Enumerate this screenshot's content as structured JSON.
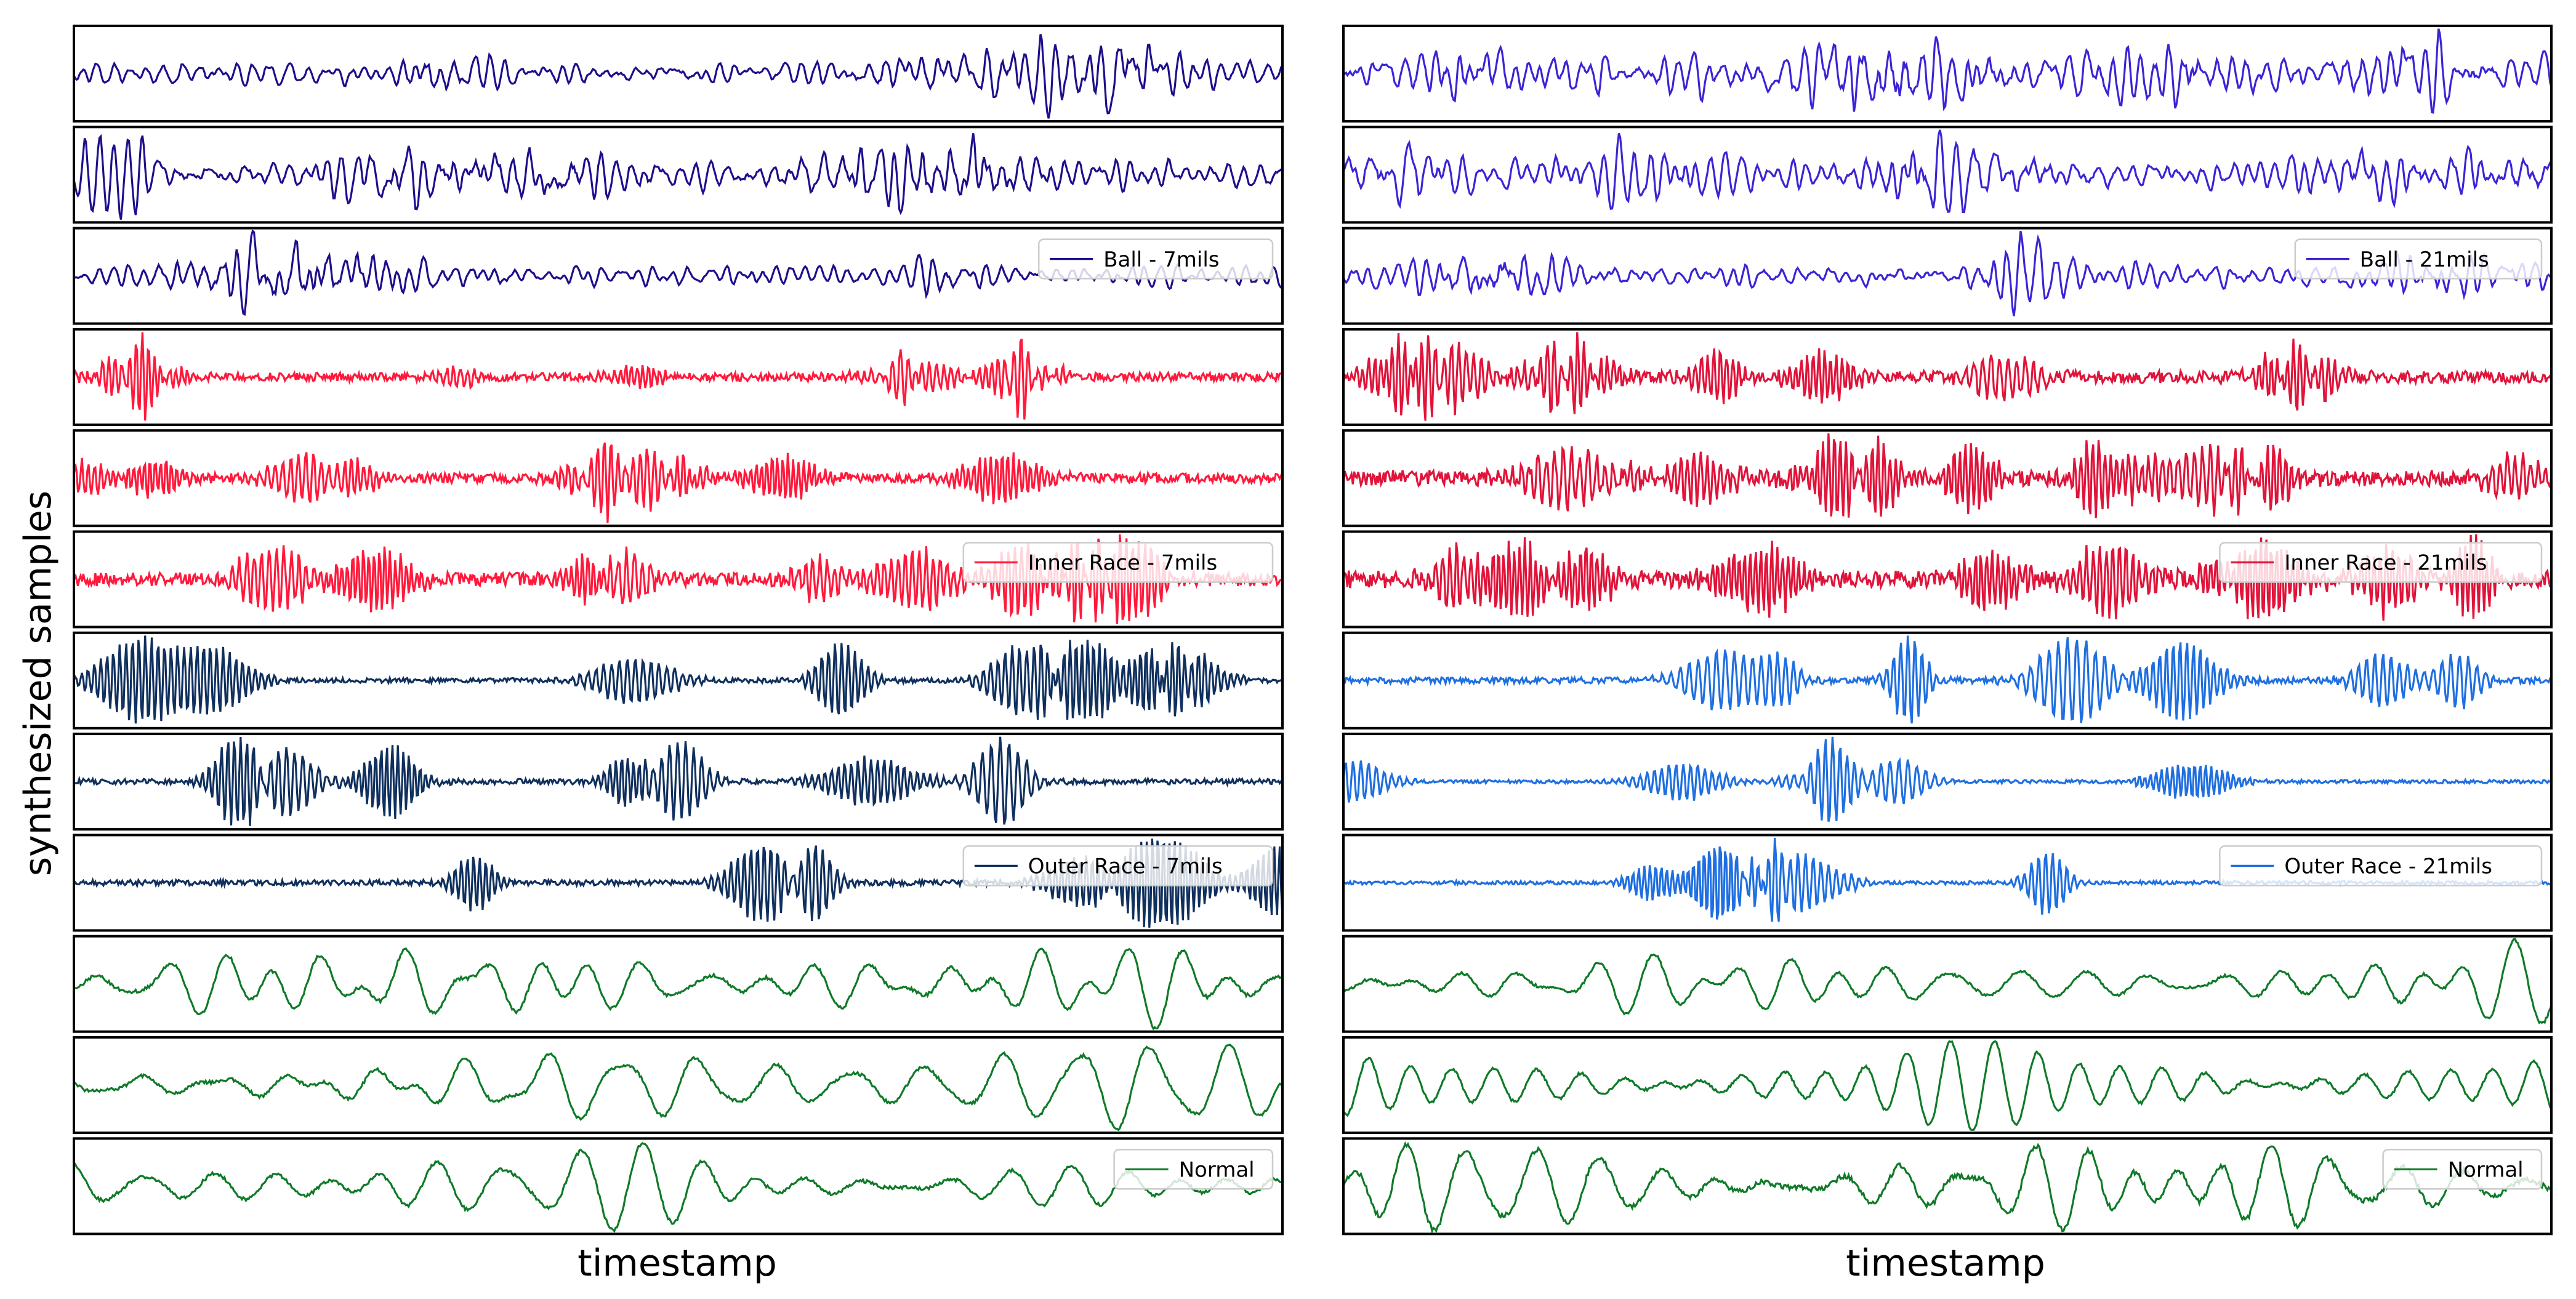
{
  "figure": {
    "ylabel": "synthesized samples",
    "xlabel_left": "timestamp",
    "xlabel_right": "timestamp"
  },
  "chart_data": [
    {
      "type": "line",
      "panel": "left",
      "xlabel": "timestamp",
      "ylabel": "synthesized samples",
      "x_ticks": "none",
      "y_ticks": "none",
      "rows": [
        {
          "group": "Ball - 7mils",
          "color": "#1d0f8c",
          "pattern": "broadband",
          "legend": ""
        },
        {
          "group": "Ball - 7mils",
          "color": "#1d0f8c",
          "pattern": "broadband",
          "legend": ""
        },
        {
          "group": "Ball - 7mils",
          "color": "#1d0f8c",
          "pattern": "broadband",
          "legend": "Ball - 7mils",
          "legend_position": "upper-right"
        },
        {
          "group": "Inner Race - 7mils",
          "color": "#ff1a3c",
          "pattern": "modulated",
          "legend": ""
        },
        {
          "group": "Inner Race - 7mils",
          "color": "#ff1a3c",
          "pattern": "modulated",
          "legend": ""
        },
        {
          "group": "Inner Race - 7mils",
          "color": "#ff1a3c",
          "pattern": "modulated",
          "legend": "Inner Race - 7mils",
          "legend_position": "upper-right"
        },
        {
          "group": "Outer Race - 7mils",
          "color": "#10305e",
          "pattern": "impulsive",
          "legend": ""
        },
        {
          "group": "Outer Race - 7mils",
          "color": "#10305e",
          "pattern": "impulsive",
          "legend": ""
        },
        {
          "group": "Outer Race - 7mils",
          "color": "#10305e",
          "pattern": "impulsive",
          "legend": "Outer Race - 7mils",
          "legend_position": "upper-right"
        },
        {
          "group": "Normal",
          "color": "#0f7a28",
          "pattern": "smooth",
          "legend": ""
        },
        {
          "group": "Normal",
          "color": "#0f7a28",
          "pattern": "smooth",
          "legend": ""
        },
        {
          "group": "Normal",
          "color": "#0f7a28",
          "pattern": "smooth",
          "legend": "Normal",
          "legend_position": "upper-right"
        }
      ]
    },
    {
      "type": "line",
      "panel": "right",
      "xlabel": "timestamp",
      "x_ticks": "none",
      "y_ticks": "none",
      "rows": [
        {
          "group": "Ball - 21mils",
          "color": "#3a24d6",
          "pattern": "broadband",
          "legend": ""
        },
        {
          "group": "Ball - 21mils",
          "color": "#3a24d6",
          "pattern": "broadband",
          "legend": ""
        },
        {
          "group": "Ball - 21mils",
          "color": "#3a24d6",
          "pattern": "broadband",
          "legend": "Ball - 21mils",
          "legend_position": "upper-right"
        },
        {
          "group": "Inner Race - 21mils",
          "color": "#e0143a",
          "pattern": "modulated",
          "legend": ""
        },
        {
          "group": "Inner Race - 21mils",
          "color": "#e0143a",
          "pattern": "modulated",
          "legend": ""
        },
        {
          "group": "Inner Race - 21mils",
          "color": "#e0143a",
          "pattern": "modulated",
          "legend": "Inner Race - 21mils",
          "legend_position": "upper-right"
        },
        {
          "group": "Outer Race - 21mils",
          "color": "#1f6fe0",
          "pattern": "impulsive",
          "legend": ""
        },
        {
          "group": "Outer Race - 21mils",
          "color": "#1f6fe0",
          "pattern": "impulsive",
          "legend": ""
        },
        {
          "group": "Outer Race - 21mils",
          "color": "#1f6fe0",
          "pattern": "impulsive",
          "legend": "Outer Race - 21mils",
          "legend_position": "upper-right"
        },
        {
          "group": "Normal",
          "color": "#0f7a28",
          "pattern": "smooth",
          "legend": ""
        },
        {
          "group": "Normal",
          "color": "#0f7a28",
          "pattern": "smooth",
          "legend": ""
        },
        {
          "group": "Normal",
          "color": "#0f7a28",
          "pattern": "smooth",
          "legend": "Normal",
          "legend_position": "upper-right"
        }
      ]
    }
  ]
}
